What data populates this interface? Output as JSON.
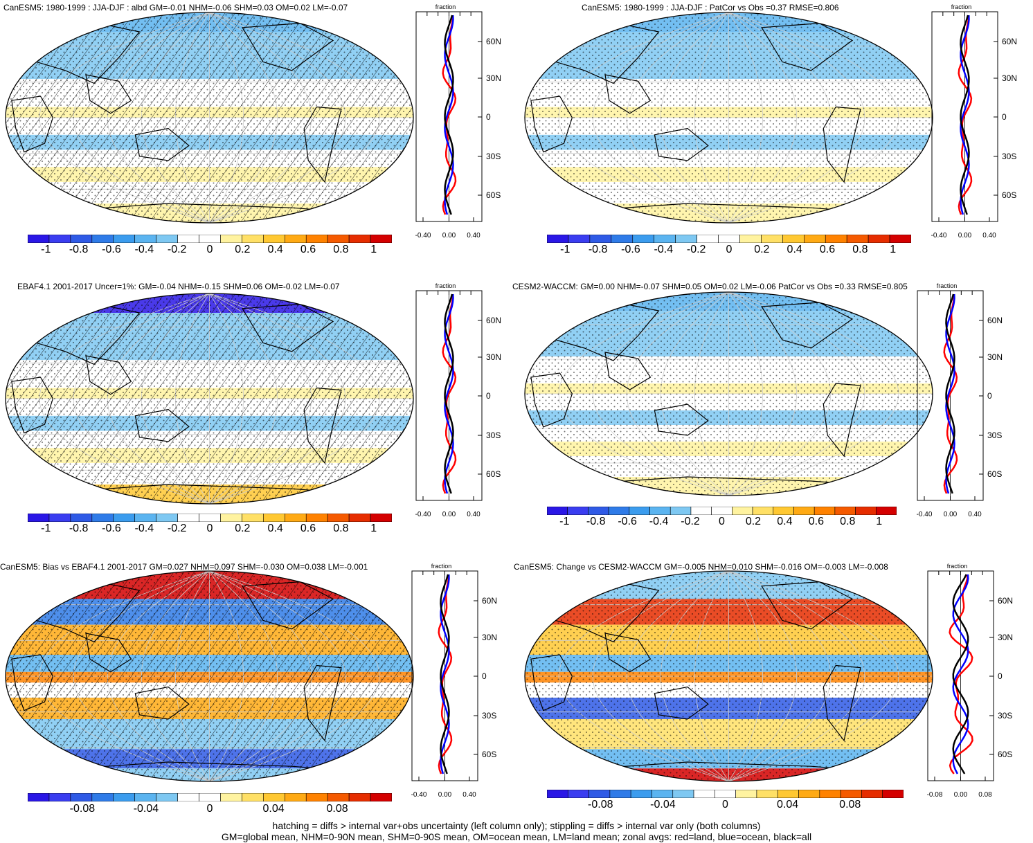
{
  "panels": [
    {
      "id": "p1",
      "title": "CanESM5: 1980-1999 : JJA-DJF : albd GM=-0.01 NHM=-0.06 SHM=0.03 OM=0.02 LM=-0.07",
      "cbar_ticks": [
        "-1",
        "-0.8",
        "-0.6",
        "-0.4",
        "-0.2",
        "0",
        "0.2",
        "0.4",
        "0.6",
        "0.8",
        "1"
      ],
      "zonal_xticks": [
        "-0.40",
        "0.00",
        "0.40"
      ],
      "zonal_yticks": [
        "60N",
        "30N",
        "0",
        "30S",
        "60S"
      ],
      "zonal_label": "fraction",
      "hatching": true
    },
    {
      "id": "p2",
      "title": "CanESM5: 1980-1999 : JJA-DJF : PatCor vs Obs =0.37 RMSE=0.806",
      "cbar_ticks": [
        "-1",
        "-0.8",
        "-0.6",
        "-0.4",
        "-0.2",
        "0",
        "0.2",
        "0.4",
        "0.6",
        "0.8",
        "1"
      ],
      "zonal_xticks": [
        "-0.40",
        "0.00",
        "0.40"
      ],
      "zonal_yticks": [
        "60N",
        "30N",
        "0",
        "30S",
        "60S"
      ],
      "zonal_label": "fraction",
      "hatching": false
    },
    {
      "id": "p3",
      "title": "EBAF4.1 2001-2017 Uncer=1%: GM=-0.04 NHM=-0.15 SHM=0.06 OM=-0.02 LM=-0.07",
      "cbar_ticks": [
        "-1",
        "-0.8",
        "-0.6",
        "-0.4",
        "-0.2",
        "0",
        "0.2",
        "0.4",
        "0.6",
        "0.8",
        "1"
      ],
      "zonal_xticks": [
        "-0.40",
        "0.00",
        "0.40"
      ],
      "zonal_yticks": [
        "60N",
        "30N",
        "0",
        "30S",
        "60S"
      ],
      "zonal_label": "fraction",
      "hatching": true
    },
    {
      "id": "p4",
      "title": "CESM2-WACCM: GM=0.00 NHM=-0.07 SHM=0.05 OM=0.02 LM=-0.06 PatCor vs Obs =0.33 RMSE=0.805",
      "cbar_ticks": [
        "-1",
        "-0.8",
        "-0.6",
        "-0.4",
        "-0.2",
        "0",
        "0.2",
        "0.4",
        "0.6",
        "0.8",
        "1"
      ],
      "zonal_xticks": [
        "-0.40",
        "0.00",
        "0.40"
      ],
      "zonal_yticks": [
        "60N",
        "30N",
        "0",
        "30S",
        "60S"
      ],
      "zonal_label": "fraction",
      "hatching": false
    },
    {
      "id": "p5",
      "title": "CanESM5: Bias vs EBAF4.1 2001-2017 GM=0.027 NHM=0.097 SHM=-0.030 OM=0.038 LM=-0.001",
      "cbar_ticks": [
        "-0.08",
        "-0.04",
        "0",
        "0.04",
        "0.08"
      ],
      "zonal_xticks": [
        "-0.40",
        "0.00",
        "0.40"
      ],
      "zonal_yticks": [
        "60N",
        "30N",
        "0",
        "30S",
        "60S"
      ],
      "zonal_label": "fraction",
      "hatching": true
    },
    {
      "id": "p6",
      "title": "CanESM5: Change vs CESM2-WACCM GM=-0.005 NHM=0.010 SHM=-0.016 OM=-0.003 LM=-0.008",
      "cbar_ticks": [
        "-0.08",
        "-0.04",
        "0",
        "0.04",
        "0.08"
      ],
      "zonal_xticks": [
        "-0.08",
        "0.00",
        "0.08"
      ],
      "zonal_yticks": [
        "60N",
        "30N",
        "0",
        "30S",
        "60S"
      ],
      "zonal_label": "fraction",
      "hatching": false
    }
  ],
  "colors": {
    "palette": [
      "#2a17e6",
      "#3a3df0",
      "#2f5ae6",
      "#2f7be8",
      "#3b9cee",
      "#5bb4f0",
      "#7ec8f2",
      "#ffffff",
      "#ffffff",
      "#fff3a0",
      "#ffe066",
      "#ffc832",
      "#ffaa14",
      "#ff8200",
      "#f55a00",
      "#e62d00",
      "#d40000"
    ],
    "land_line": "red",
    "ocean_line": "blue",
    "all_line": "black"
  },
  "footer": {
    "line1": "hatching = diffs > internal var+obs uncertainty (left column only); stippling = diffs > internal var only (both columns)",
    "line2": "GM=global mean, NHM=0-90N mean, SHM=0-90S mean, OM=ocean mean, LM=land mean; zonal avgs: red=land, blue=ocean, black=all"
  }
}
